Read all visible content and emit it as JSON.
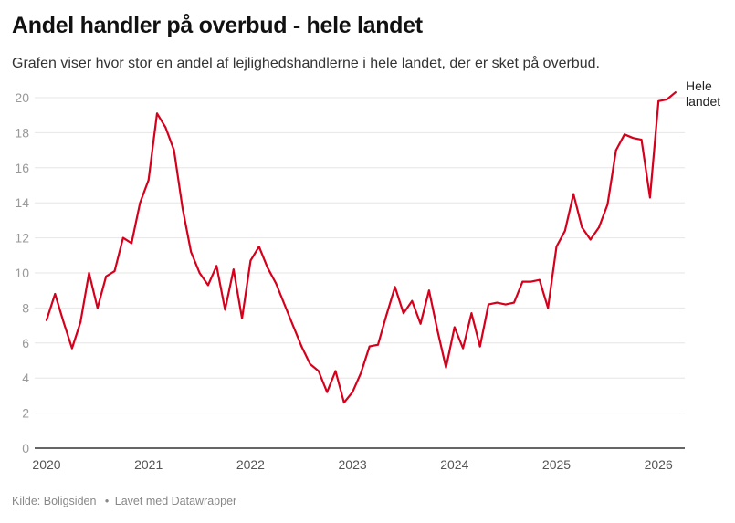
{
  "header": {
    "title": "Andel handler på overbud - hele landet",
    "subtitle": "Grafen viser hvor stor en andel af lejlighedshandlerne i hele landet, der er sket på overbud."
  },
  "footer": {
    "source_label": "Kilde: Boligsiden",
    "separator": "•",
    "made_with": "Lavet med Datawrapper"
  },
  "colors": {
    "line": "#d6001c",
    "grid": "#e6e6e6",
    "axis": "#333333"
  },
  "chart_data": {
    "type": "line",
    "title": "Andel handler på overbud - hele landet",
    "subtitle": "Grafen viser hvor stor en andel af lejlighedshandlerne i hele landet, der er sket på overbud.",
    "xlabel": "",
    "ylabel": "",
    "x_start": "2020-01",
    "x_frequency": "monthly",
    "x_tick_labels": [
      "2020",
      "2021",
      "2022",
      "2023",
      "2024",
      "2025",
      "2026"
    ],
    "y_tick_labels": [
      "0",
      "2",
      "4",
      "6",
      "8",
      "10",
      "12",
      "14",
      "16",
      "18",
      "20"
    ],
    "ylim": [
      0,
      20
    ],
    "grid": true,
    "legend": "direct-label-right",
    "series": [
      {
        "name": "Hele landet",
        "values": [
          7.3,
          8.8,
          7.2,
          5.7,
          7.2,
          10.0,
          8.0,
          9.8,
          10.1,
          12.0,
          11.7,
          14.0,
          15.3,
          19.1,
          18.3,
          17.0,
          13.7,
          11.2,
          10.0,
          9.3,
          10.4,
          7.9,
          10.2,
          7.4,
          10.7,
          11.5,
          10.3,
          9.4,
          8.2,
          7.0,
          5.8,
          4.8,
          4.4,
          3.2,
          4.4,
          2.6,
          3.2,
          4.3,
          5.8,
          5.9,
          7.6,
          9.2,
          7.7,
          8.4,
          7.1,
          9.0,
          6.7,
          4.6,
          6.9,
          5.7,
          7.7,
          5.8,
          8.2,
          8.3,
          8.2,
          8.3,
          9.5,
          9.5,
          9.6,
          8.0,
          11.5,
          12.4,
          14.5,
          12.6,
          11.9,
          12.6,
          13.9,
          17.0,
          17.9,
          17.7,
          17.6,
          14.3,
          19.8,
          19.9,
          20.3
        ]
      }
    ],
    "series_label": [
      "Hele",
      "landet"
    ]
  }
}
